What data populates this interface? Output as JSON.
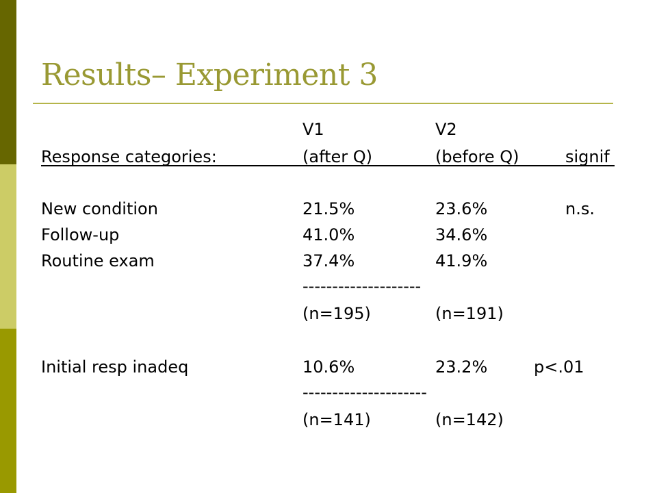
{
  "slide": {
    "title": "Results– Experiment 3",
    "colors": {
      "band_top": "#666600",
      "band_mid": "#CCCC66",
      "band_bot": "#999900",
      "title": "#999933"
    }
  },
  "table": {
    "header_top": {
      "v1": "V1",
      "v2": "V2"
    },
    "header": {
      "label": "Response categories:",
      "v1": "(after Q)",
      "v2": "(before Q)",
      "signif": "signif"
    },
    "rows": [
      {
        "label": "New condition",
        "v1": "21.5%",
        "v2": "23.6%",
        "signif": "n.s."
      },
      {
        "label": "Follow-up",
        "v1": "41.0%",
        "v2": "34.6%",
        "signif": ""
      },
      {
        "label": "Routine exam",
        "v1": "37.4%",
        "v2": "41.9%",
        "signif": ""
      }
    ],
    "separator1": "--------------------",
    "n1": {
      "v1": "(n=195)",
      "v2": "(n=191)"
    },
    "row2": {
      "label": "Initial resp inadeq",
      "v1": "10.6%",
      "v2": "23.2%",
      "signif": "p<.01"
    },
    "separator2": "---------------------",
    "n2": {
      "v1": "(n=141)",
      "v2": "(n=142)"
    }
  }
}
